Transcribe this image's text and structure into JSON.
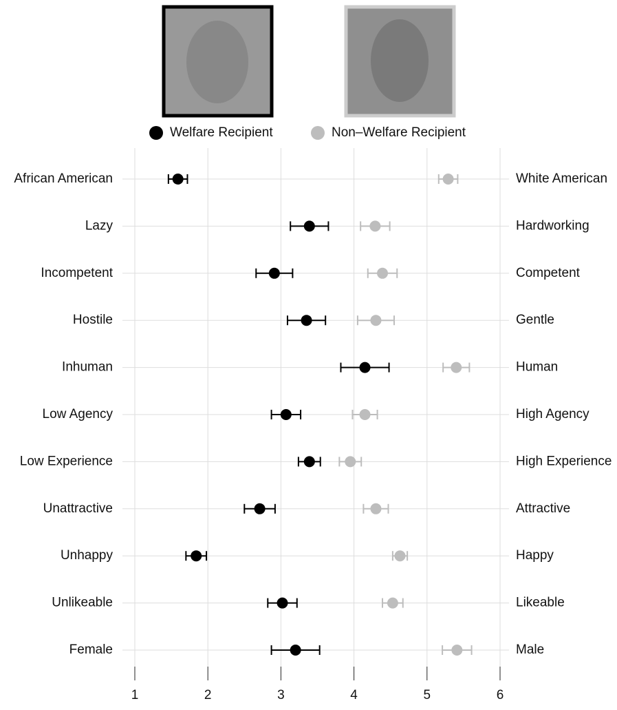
{
  "chart_data": {
    "type": "dotplot",
    "categories": [
      "African American",
      "Lazy",
      "Incompetent",
      "Hostile",
      "Inhuman",
      "Low Agency",
      "Low Experience",
      "Unattractive",
      "Unhappy",
      "Unlikeable",
      "Female"
    ],
    "right_labels": [
      "White American",
      "Hardworking",
      "Competent",
      "Gentle",
      "Human",
      "High Agency",
      "High Experience",
      "Attractive",
      "Happy",
      "Likeable",
      "Male"
    ],
    "series": [
      {
        "name": "Welfare Recipient",
        "color": "#000000",
        "values": [
          1.59,
          3.39,
          2.91,
          3.35,
          4.15,
          3.07,
          3.39,
          2.71,
          1.84,
          3.02,
          3.2
        ],
        "errors": [
          0.13,
          0.26,
          0.25,
          0.26,
          0.33,
          0.2,
          0.15,
          0.21,
          0.14,
          0.2,
          0.33
        ]
      },
      {
        "name": "Non–Welfare Recipient",
        "color": "#bdbdbd",
        "values": [
          5.29,
          4.29,
          4.39,
          4.3,
          5.4,
          4.15,
          3.95,
          4.3,
          4.63,
          4.53,
          5.41
        ],
        "errors": [
          0.13,
          0.2,
          0.2,
          0.25,
          0.18,
          0.17,
          0.15,
          0.17,
          0.1,
          0.14,
          0.2
        ]
      }
    ],
    "xlim": [
      1,
      6
    ],
    "xticks": [
      1,
      2,
      3,
      4,
      5,
      6
    ],
    "grid": true
  }
}
